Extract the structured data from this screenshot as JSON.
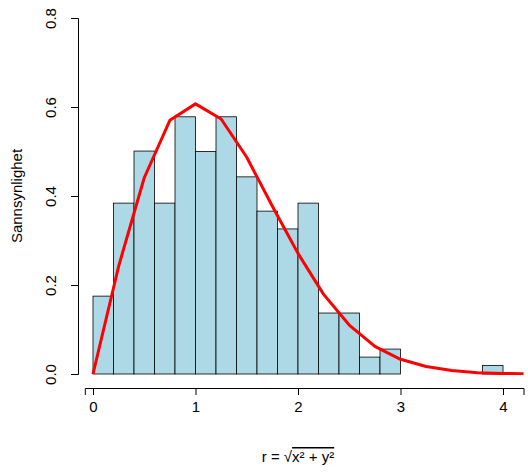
{
  "chart_data": {
    "type": "histogram",
    "x_label": "r = √x² + y²",
    "y_label": "Sannsynlighet",
    "bins": [
      0,
      0.2,
      0.4,
      0.6,
      0.8,
      1.0,
      1.2,
      1.4,
      1.6,
      1.8,
      2.0,
      2.2,
      2.4,
      2.6,
      2.8,
      3.0,
      3.2,
      3.4,
      3.6,
      3.8,
      4.0
    ],
    "series": [
      {
        "type": "bar",
        "color": "#add8e6",
        "values": [
          0.175,
          0.384,
          0.501,
          0.384,
          0.578,
          0.5,
          0.578,
          0.443,
          0.366,
          0.326,
          0.384,
          0.137,
          0.137,
          0.038,
          0.056,
          0,
          0,
          0,
          0,
          0.019
        ]
      },
      {
        "type": "line",
        "color": "#ff0000",
        "x": [
          0,
          0.25,
          0.5,
          0.75,
          1,
          1.25,
          1.5,
          1.75,
          2,
          2.25,
          2.5,
          2.75,
          3,
          3.25,
          3.5,
          3.75,
          4,
          4.25
        ],
        "values": [
          0,
          0.242,
          0.441,
          0.57,
          0.607,
          0.573,
          0.487,
          0.377,
          0.271,
          0.179,
          0.11,
          0.062,
          0.033,
          0.017,
          0.008,
          0.003,
          0.001,
          0.0005
        ]
      }
    ],
    "xlim": [
      -0.08,
      4.2
    ],
    "ylim": [
      0,
      0.8
    ],
    "xticks": [
      0,
      1,
      2,
      3,
      4
    ],
    "yticks": [
      {
        "value": 0,
        "label": "0.0"
      },
      0.2,
      0.4,
      0.6,
      0.8
    ]
  }
}
